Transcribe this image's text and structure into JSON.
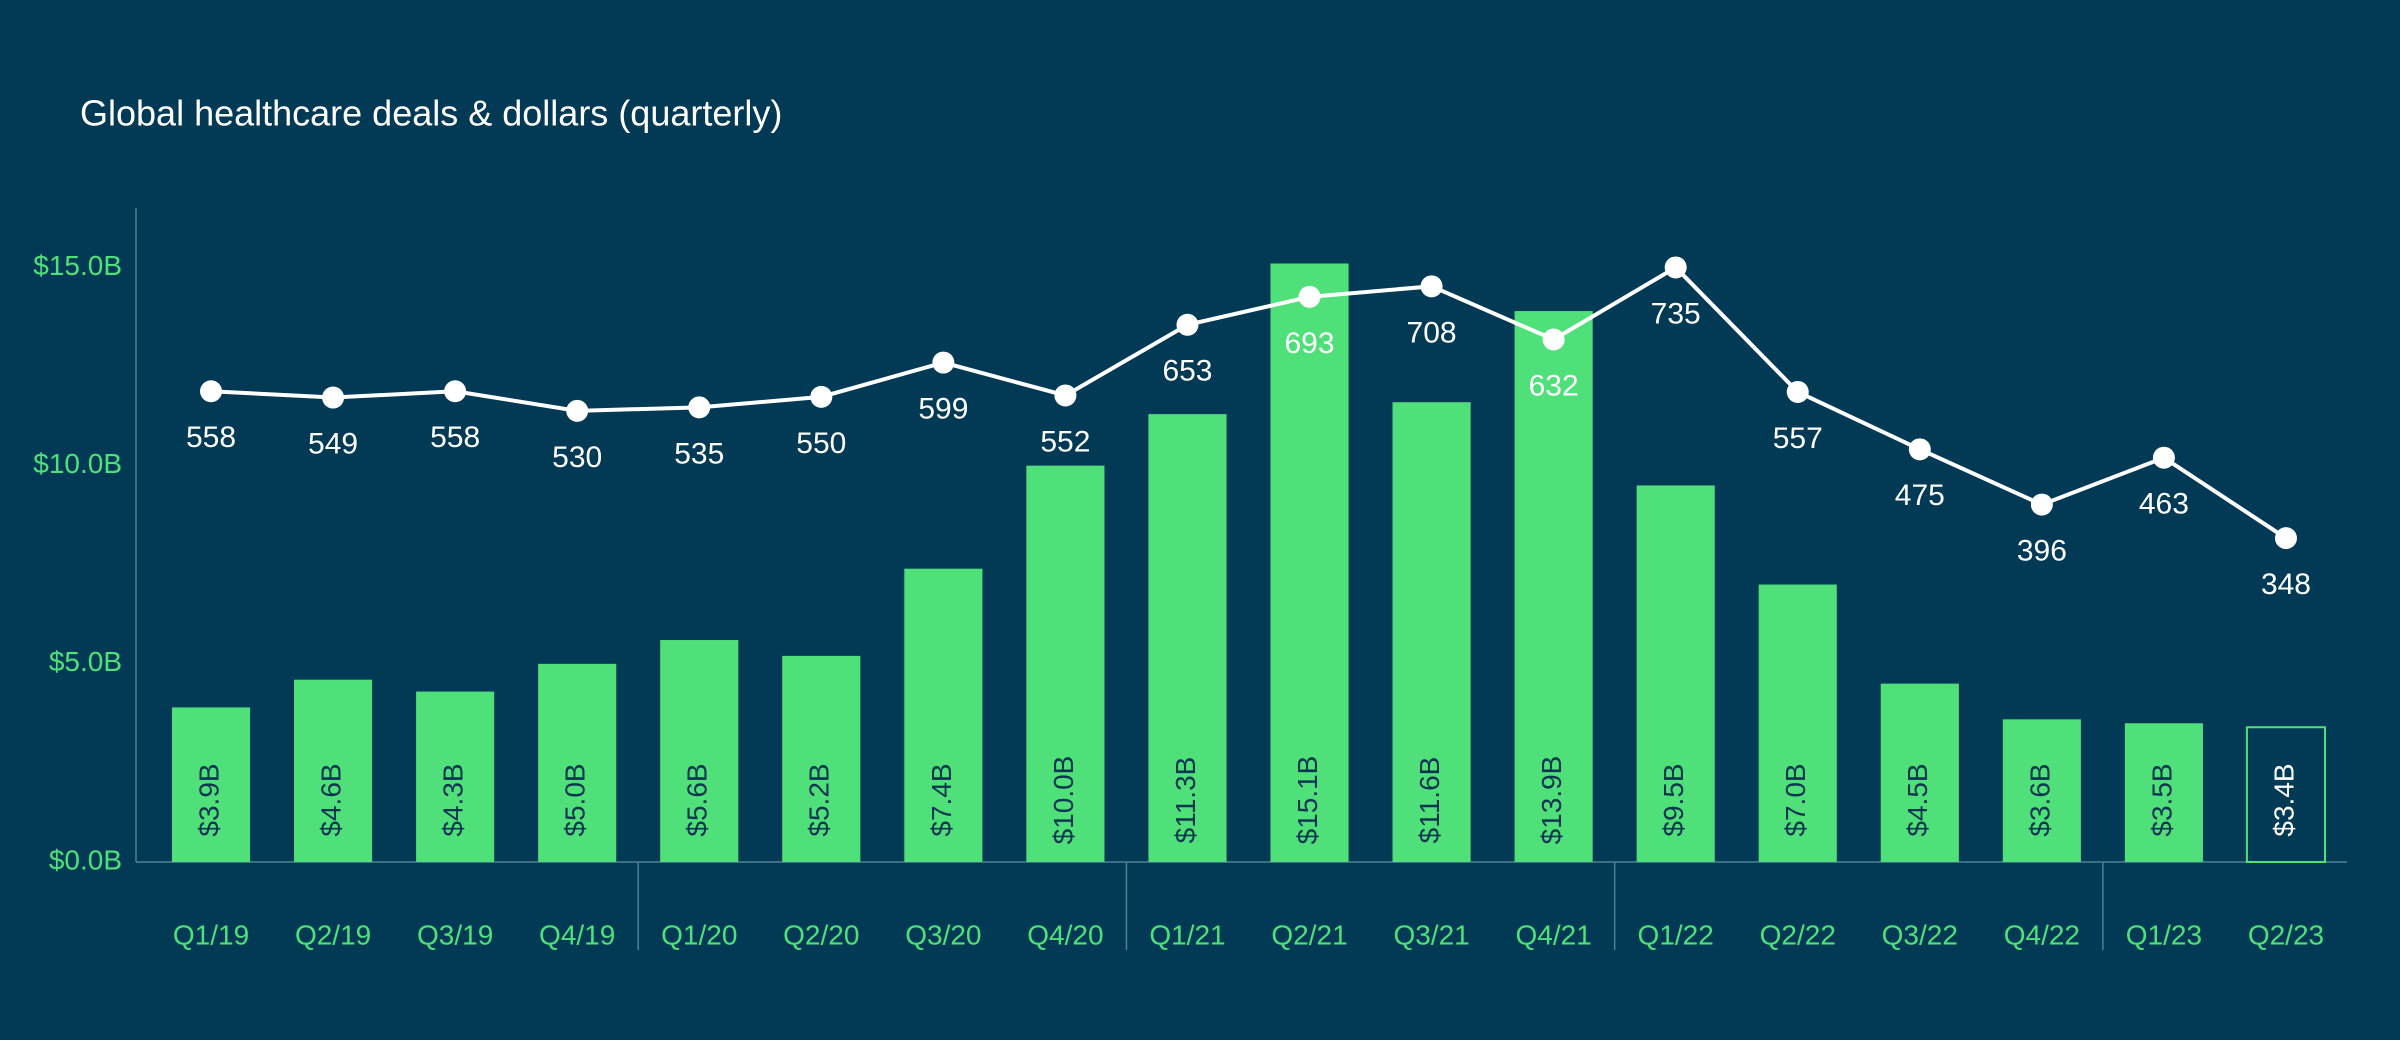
{
  "chart_data": {
    "type": "bar",
    "title": "Global healthcare deals & dollars (quarterly)",
    "categories": [
      "Q1/19",
      "Q2/19",
      "Q3/19",
      "Q4/19",
      "Q1/20",
      "Q2/20",
      "Q3/20",
      "Q4/20",
      "Q1/21",
      "Q2/21",
      "Q3/21",
      "Q4/21",
      "Q1/22",
      "Q2/22",
      "Q3/22",
      "Q4/22",
      "Q1/23",
      "Q2/23"
    ],
    "series": [
      {
        "type": "bar",
        "color": "#4fe07a",
        "outline_last": true,
        "values": [
          3.9,
          4.6,
          4.3,
          5.0,
          5.6,
          5.2,
          7.4,
          10.0,
          11.3,
          15.1,
          11.6,
          13.9,
          9.5,
          7.0,
          4.5,
          3.6,
          3.5,
          3.4
        ],
        "value_labels": [
          "$3.9B",
          "$4.6B",
          "$4.3B",
          "$5.0B",
          "$5.6B",
          "$5.2B",
          "$7.4B",
          "$10.0B",
          "$11.3B",
          "$15.1B",
          "$11.6B",
          "$13.9B",
          "$9.5B",
          "$7.0B",
          "$4.5B",
          "$3.6B",
          "$3.5B",
          "$3.4B"
        ]
      },
      {
        "type": "line",
        "axis": "y2",
        "color": "#ffffff",
        "values": [
          558,
          549,
          558,
          530,
          535,
          550,
          599,
          552,
          653,
          693,
          708,
          632,
          735,
          557,
          475,
          396,
          463,
          348
        ]
      }
    ],
    "ylim": [
      0,
      16.5
    ],
    "yticks": [
      {
        "value": 0,
        "label": "$0.0B"
      },
      {
        "value": 5,
        "label": "$5.0B"
      },
      {
        "value": 10,
        "label": "$10.0B"
      },
      {
        "value": 15,
        "label": "$15.0B"
      }
    ],
    "y2lim": [
      -115,
      820
    ],
    "grid": false
  }
}
